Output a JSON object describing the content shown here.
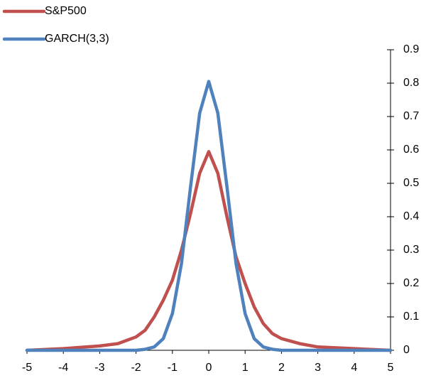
{
  "chart_data": {
    "type": "line",
    "x": [
      -5,
      -4,
      -3,
      -2.5,
      -2,
      -1.75,
      -1.5,
      -1.25,
      -1,
      -0.75,
      -0.5,
      -0.25,
      0,
      0.25,
      0.5,
      0.75,
      1,
      1.25,
      1.5,
      1.75,
      2,
      2.5,
      3,
      4,
      5
    ],
    "series": [
      {
        "name": "S&P500",
        "color": "#c0504d",
        "values": [
          0.0,
          0.005,
          0.013,
          0.02,
          0.04,
          0.06,
          0.1,
          0.15,
          0.21,
          0.3,
          0.41,
          0.53,
          0.595,
          0.53,
          0.4,
          0.28,
          0.2,
          0.13,
          0.08,
          0.05,
          0.035,
          0.02,
          0.01,
          0.005,
          0.0
        ]
      },
      {
        "name": "GARCH(3,3)",
        "color": "#4f81bd",
        "values": [
          0,
          0,
          0,
          0,
          0,
          0.003,
          0.01,
          0.035,
          0.11,
          0.26,
          0.49,
          0.71,
          0.805,
          0.71,
          0.49,
          0.26,
          0.11,
          0.035,
          0.01,
          0.003,
          0,
          0,
          0,
          0,
          0
        ]
      }
    ],
    "xlim": [
      -5,
      5
    ],
    "xticks": [
      -5,
      -4,
      -3,
      -2,
      -1,
      0,
      1,
      2,
      3,
      4,
      5
    ],
    "ylim": [
      0,
      0.9
    ],
    "yticks": [
      0,
      0.1,
      0.2,
      0.3,
      0.4,
      0.5,
      0.6,
      0.7,
      0.8,
      0.9
    ],
    "legend": "top-left",
    "grid": false
  }
}
